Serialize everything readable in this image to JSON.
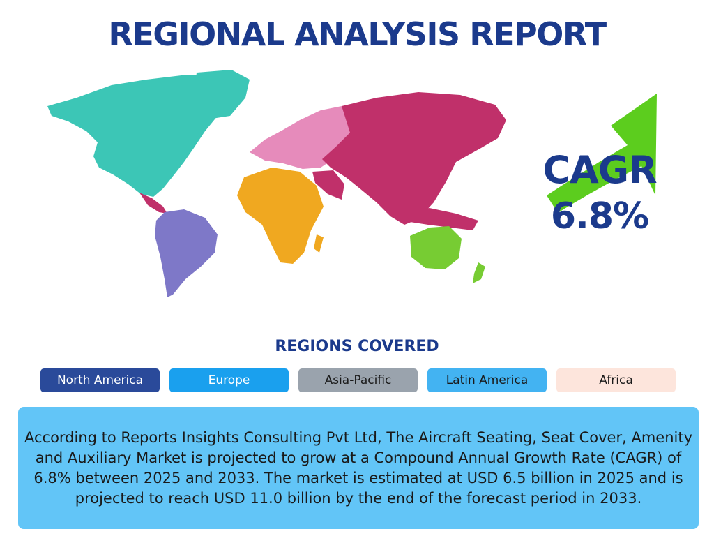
{
  "title": "REGIONAL ANALYSIS REPORT",
  "cagr": {
    "label": "CAGR",
    "value": "6.8%"
  },
  "regions_heading": "REGIONS COVERED",
  "regions": [
    "North America",
    "Europe",
    "Asia-Pacific",
    "Latin America",
    "Africa"
  ],
  "summary": "According to Reports Insights Consulting Pvt Ltd, The Aircraft Seating, Seat Cover, Amenity and Auxiliary Market is projected to grow at a Compound Annual Growth Rate (CAGR) of 6.8% between 2025 and 2033. The market is estimated at USD 6.5 billion in 2025 and is projected to reach USD 11.0 billion by the end of the forecast period in 2033.",
  "colors": {
    "title": "#1b3a8c",
    "north_america_map": "#3cc6b6",
    "europe_map": "#e68bbb",
    "asia_map": "#c0306a",
    "africa_map": "#f0a820",
    "south_america_map": "#7e78c8",
    "oceania_map": "#77cc33",
    "arrow": "#5ccd1e",
    "summary_box": "#62c5f7"
  },
  "icons": {
    "growth_arrow": "arrow-up-right-icon"
  }
}
